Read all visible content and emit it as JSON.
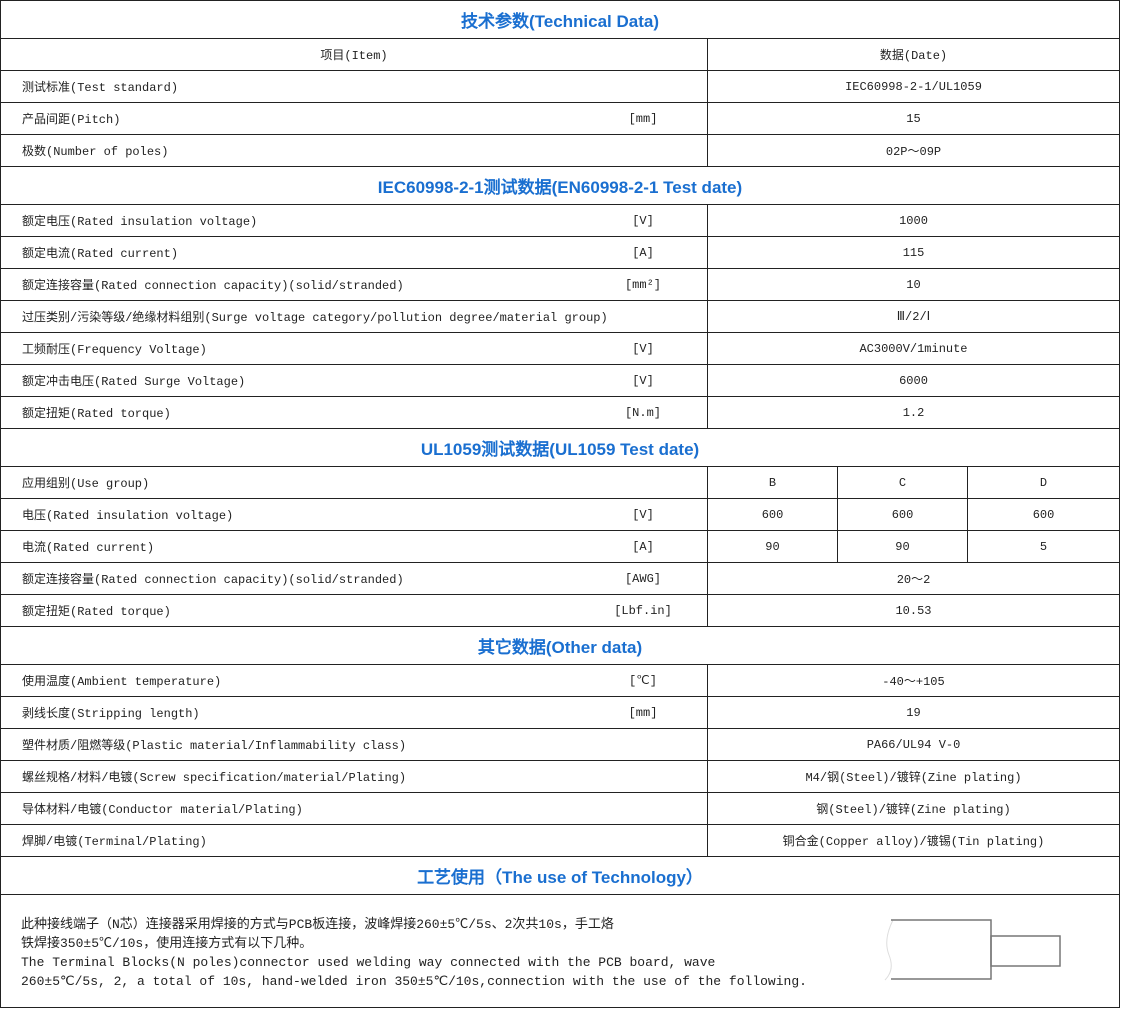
{
  "title": "技术参数(Technical Data)",
  "header": {
    "item": "项目(Item)",
    "data": "数据(Date)"
  },
  "general": [
    {
      "label": "测试标准(Test standard)",
      "unit": "",
      "value": "IEC60998-2-1/UL1059"
    },
    {
      "label": "产品间距(Pitch)",
      "unit": "[mm]",
      "value": "15"
    },
    {
      "label": "极数(Number of poles)",
      "unit": "",
      "value": "02P～09P"
    }
  ],
  "iec_title": "IEC60998-2-1测试数据(EN60998-2-1 Test date)",
  "iec": [
    {
      "label": "额定电压(Rated insulation voltage)",
      "unit": "[V]",
      "value": "1000"
    },
    {
      "label": "额定电流(Rated current)",
      "unit": "[A]",
      "value": "115"
    },
    {
      "label": "额定连接容量(Rated connection capacity)(solid/stranded)",
      "unit": "[mm²]",
      "value": "10"
    },
    {
      "label": "过压类别/污染等级/绝缘材料组别(Surge voltage category/pollution degree/material group)",
      "unit": "",
      "value": "Ⅲ/2/Ⅰ"
    },
    {
      "label": "工频耐压(Frequency Voltage)",
      "unit": "[V]",
      "value": "AC3000V/1minute"
    },
    {
      "label": "额定冲击电压(Rated Surge Voltage)",
      "unit": "[V]",
      "value": "6000"
    },
    {
      "label": "额定扭矩(Rated torque)",
      "unit": "[N.m]",
      "value": "1.2"
    }
  ],
  "ul_title": "UL1059测试数据(UL1059 Test date)",
  "ul": [
    {
      "label": "应用组别(Use group)",
      "unit": "",
      "values": [
        "B",
        "C",
        "D"
      ]
    },
    {
      "label": "电压(Rated insulation voltage)",
      "unit": "[V]",
      "values": [
        "600",
        "600",
        "600"
      ]
    },
    {
      "label": "电流(Rated current)",
      "unit": "[A]",
      "values": [
        "90",
        "90",
        "5"
      ]
    },
    {
      "label": "额定连接容量(Rated connection capacity)(solid/stranded)",
      "unit": "[AWG]",
      "value": "20～2"
    },
    {
      "label": "额定扭矩(Rated torque)",
      "unit": "[Lbf.in]",
      "value": "10.53"
    }
  ],
  "other_title": "其它数据(Other data)",
  "other": [
    {
      "label": "使用温度(Ambient temperature)",
      "unit": "[℃]",
      "value": "-40～+105"
    },
    {
      "label": "剥线长度(Stripping length)",
      "unit": "[mm]",
      "value": "19"
    },
    {
      "label": "塑件材质/阻燃等级(Plastic material/Inflammability class)",
      "unit": "",
      "value": "PA66/UL94 V-0"
    },
    {
      "label": "螺丝规格/材料/电镀(Screw specification/material/Plating)",
      "unit": "",
      "value": "M4/钢(Steel)/镀锌(Zine plating)"
    },
    {
      "label": "导体材料/电镀(Conductor material/Plating)",
      "unit": "",
      "value": "钢(Steel)/镀锌(Zine plating)"
    },
    {
      "label": "焊脚/电镀(Terminal/Plating)",
      "unit": "",
      "value": "铜合金(Copper alloy)/镀锡(Tin plating)"
    }
  ],
  "tech_title": "工艺使用（The use of Technology）",
  "tech_lines": [
    "此种接线端子（N芯）连接器采用焊接的方式与PCB板连接，波峰焊接260±5℃/5s、2次共10s，手工烙",
    "铁焊接350±5℃/10s，使用连接方式有以下几种。",
    "The Terminal Blocks(N poles)connector used welding way connected with the PCB board, wave",
    "260±5℃/5s, 2, a total of 10s, hand-welded iron 350±5℃/10s,connection with the use of the following."
  ]
}
